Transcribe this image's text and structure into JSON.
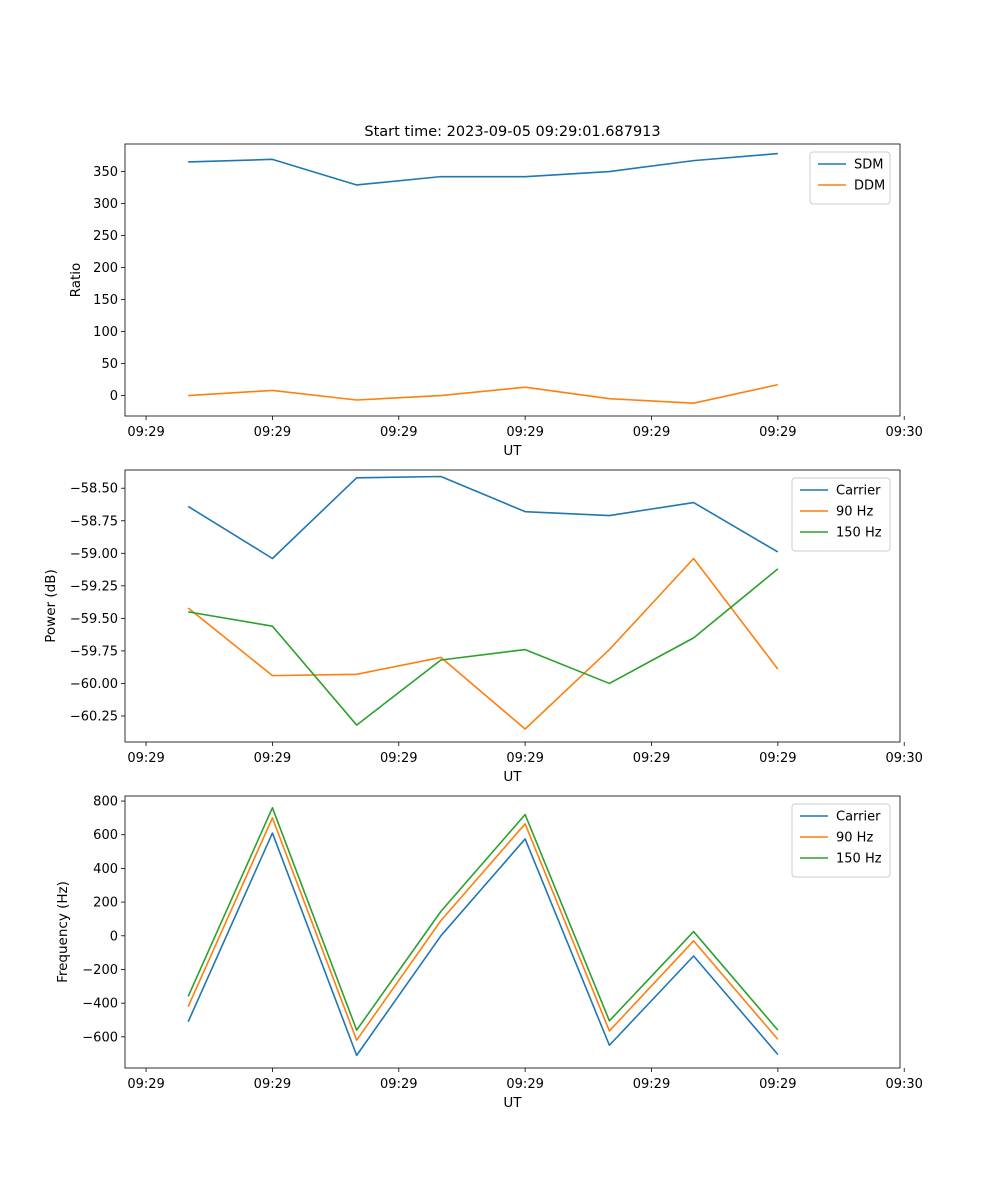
{
  "figure_title": "Start time: 2023-09-05 09:29:01.687913",
  "colors": {
    "blue": "#1f77b4",
    "orange": "#ff7f0e",
    "green": "#2ca02c"
  },
  "chart_data": [
    {
      "type": "line",
      "title": "Start time: 2023-09-05 09:29:01.687913",
      "xlabel": "UT",
      "ylabel": "Ratio",
      "x": [
        0,
        1,
        2,
        3,
        4,
        5,
        6,
        7
      ],
      "xlim": [
        -0.75,
        8.45
      ],
      "x_ticks": [
        -0.5,
        1.0,
        2.5,
        4.0,
        5.5,
        7.0,
        8.5
      ],
      "x_tick_labels": [
        "09:29",
        "09:29",
        "09:29",
        "09:29",
        "09:29",
        "09:29",
        "09:30"
      ],
      "ylim": [
        -32,
        393
      ],
      "y_ticks": [
        0,
        50,
        100,
        150,
        200,
        250,
        300,
        350
      ],
      "y_tick_labels": [
        "0",
        "50",
        "100",
        "150",
        "200",
        "250",
        "300",
        "350"
      ],
      "legend": "top-right",
      "series": [
        {
          "name": "SDM",
          "color": "#1f77b4",
          "values": [
            365,
            369,
            329,
            342,
            342,
            350,
            367,
            378
          ]
        },
        {
          "name": "DDM",
          "color": "#ff7f0e",
          "values": [
            0,
            8,
            -7,
            0,
            13,
            -5,
            -12,
            17
          ]
        }
      ]
    },
    {
      "type": "line",
      "title": "",
      "xlabel": "UT",
      "ylabel": "Power (dB)",
      "x": [
        0,
        1,
        2,
        3,
        4,
        5,
        6,
        7
      ],
      "xlim": [
        -0.75,
        8.45
      ],
      "x_ticks": [
        -0.5,
        1.0,
        2.5,
        4.0,
        5.5,
        7.0,
        8.5
      ],
      "x_tick_labels": [
        "09:29",
        "09:29",
        "09:29",
        "09:29",
        "09:29",
        "09:29",
        "09:30"
      ],
      "ylim": [
        -60.45,
        -58.36
      ],
      "y_ticks": [
        -60.25,
        -60.0,
        -59.75,
        -59.5,
        -59.25,
        -59.0,
        -58.75,
        -58.5
      ],
      "y_tick_labels": [
        "−60.25",
        "−60.00",
        "−59.75",
        "−59.50",
        "−59.25",
        "−59.00",
        "−58.75",
        "−58.50"
      ],
      "legend": "top-right",
      "series": [
        {
          "name": "Carrier",
          "color": "#1f77b4",
          "values": [
            -58.64,
            -59.04,
            -58.42,
            -58.41,
            -58.68,
            -58.71,
            -58.61,
            -58.99
          ]
        },
        {
          "name": "90 Hz",
          "color": "#ff7f0e",
          "values": [
            -59.42,
            -59.94,
            -59.93,
            -59.8,
            -60.35,
            -59.74,
            -59.04,
            -59.89
          ]
        },
        {
          "name": "150 Hz",
          "color": "#2ca02c",
          "values": [
            -59.45,
            -59.56,
            -60.32,
            -59.82,
            -59.74,
            -60.0,
            -59.65,
            -59.12
          ]
        }
      ]
    },
    {
      "type": "line",
      "title": "",
      "xlabel": "UT",
      "ylabel": "Frequency (Hz)",
      "x": [
        0,
        1,
        2,
        3,
        4,
        5,
        6,
        7
      ],
      "xlim": [
        -0.75,
        8.45
      ],
      "x_ticks": [
        -0.5,
        1.0,
        2.5,
        4.0,
        5.5,
        7.0,
        8.5
      ],
      "x_tick_labels": [
        "09:29",
        "09:29",
        "09:29",
        "09:29",
        "09:29",
        "09:29",
        "09:30"
      ],
      "ylim": [
        -785,
        830
      ],
      "y_ticks": [
        -600,
        -400,
        -200,
        0,
        200,
        400,
        600,
        800
      ],
      "y_tick_labels": [
        "−600",
        "−400",
        "−200",
        "0",
        "200",
        "400",
        "600",
        "800"
      ],
      "legend": "top-right",
      "series": [
        {
          "name": "Carrier",
          "color": "#1f77b4",
          "values": [
            -510,
            610,
            -710,
            0,
            575,
            -650,
            -120,
            -705
          ]
        },
        {
          "name": "90 Hz",
          "color": "#ff7f0e",
          "values": [
            -420,
            700,
            -620,
            90,
            665,
            -565,
            -30,
            -615
          ]
        },
        {
          "name": "150 Hz",
          "color": "#2ca02c",
          "values": [
            -360,
            760,
            -560,
            145,
            720,
            -505,
            25,
            -560
          ]
        }
      ]
    }
  ]
}
